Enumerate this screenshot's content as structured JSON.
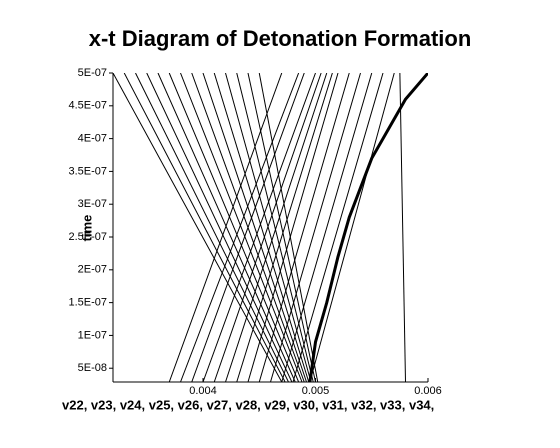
{
  "chart_data": {
    "type": "line",
    "title": "x-t Diagram of Detonation Formation",
    "x_label": "v22, v23, v24, v25, v26, v27, v28, v29, v30, v31, v32, v33, v34,",
    "y_label": "time",
    "color": "#000000",
    "xlim": [
      0.0032,
      0.006
    ],
    "xticks": [
      0.004,
      0.005,
      0.006
    ],
    "ylim": [
      2.9e-08,
      5e-07
    ],
    "yticks": [
      {
        "value": 5e-08,
        "label": "5E-08"
      },
      {
        "value": 1e-07,
        "label": "1E-07"
      },
      {
        "value": 1.5e-07,
        "label": "1.5E-07"
      },
      {
        "value": 2e-07,
        "label": "2E-07"
      },
      {
        "value": 2.5e-07,
        "label": "2.5E-07"
      },
      {
        "value": 3e-07,
        "label": "3E-07"
      },
      {
        "value": 3.5e-07,
        "label": "3.5E-07"
      },
      {
        "value": 4e-07,
        "label": "4E-07"
      },
      {
        "value": 4.5e-07,
        "label": "4.5E-07"
      },
      {
        "value": 5e-07,
        "label": "5E-07"
      }
    ],
    "series": [
      {
        "x": [
          0.0032,
          0.0047
        ],
        "values": [
          5e-07,
          2.9e-08
        ]
      },
      {
        "x": [
          0.0033,
          0.00473
        ],
        "values": [
          5e-07,
          2.9e-08
        ]
      },
      {
        "x": [
          0.0034,
          0.00476
        ],
        "values": [
          5e-07,
          2.9e-08
        ]
      },
      {
        "x": [
          0.0035,
          0.00479
        ],
        "values": [
          5e-07,
          2.9e-08
        ]
      },
      {
        "x": [
          0.0036,
          0.00482
        ],
        "values": [
          5e-07,
          2.9e-08
        ]
      },
      {
        "x": [
          0.0037,
          0.00485
        ],
        "values": [
          5e-07,
          2.9e-08
        ]
      },
      {
        "x": [
          0.0038,
          0.00488
        ],
        "values": [
          5e-07,
          2.9e-08
        ]
      },
      {
        "x": [
          0.0039,
          0.0049
        ],
        "values": [
          5e-07,
          2.9e-08
        ]
      },
      {
        "x": [
          0.004,
          0.00492
        ],
        "values": [
          5e-07,
          2.9e-08
        ]
      },
      {
        "x": [
          0.0041,
          0.00494
        ],
        "values": [
          5e-07,
          2.9e-08
        ]
      },
      {
        "x": [
          0.0042,
          0.00496
        ],
        "values": [
          5e-07,
          2.9e-08
        ]
      },
      {
        "x": [
          0.0043,
          0.00498
        ],
        "values": [
          5e-07,
          2.9e-08
        ]
      },
      {
        "x": [
          0.0044,
          0.005
        ],
        "values": [
          5e-07,
          2.9e-08
        ]
      },
      {
        "x": [
          0.0045,
          0.00502
        ],
        "values": [
          5e-07,
          2.9e-08
        ]
      },
      {
        "x": [
          0.0037,
          0.0047
        ],
        "values": [
          2.9e-08,
          5e-07
        ]
      },
      {
        "x": [
          0.0038,
          0.00485
        ],
        "values": [
          2.9e-08,
          5e-07
        ]
      },
      {
        "x": [
          0.0039,
          0.0049
        ],
        "values": [
          2.9e-08,
          5e-07
        ]
      },
      {
        "x": [
          0.004,
          0.005
        ],
        "values": [
          2.9e-08,
          5e-07
        ]
      },
      {
        "x": [
          0.0041,
          0.00505
        ],
        "values": [
          2.9e-08,
          5e-07
        ]
      },
      {
        "x": [
          0.0042,
          0.0051
        ],
        "values": [
          2.9e-08,
          5e-07
        ]
      },
      {
        "x": [
          0.0043,
          0.00515
        ],
        "values": [
          2.9e-08,
          5e-07
        ]
      },
      {
        "x": [
          0.0044,
          0.0052
        ],
        "values": [
          2.9e-08,
          5e-07
        ]
      },
      {
        "x": [
          0.0045,
          0.0053
        ],
        "values": [
          2.9e-08,
          5e-07
        ]
      },
      {
        "x": [
          0.0046,
          0.0054
        ],
        "values": [
          2.9e-08,
          5e-07
        ]
      },
      {
        "x": [
          0.0047,
          0.0055
        ],
        "values": [
          2.9e-08,
          5e-07
        ]
      },
      {
        "x": [
          0.0048,
          0.0056
        ],
        "values": [
          2.9e-08,
          5e-07
        ]
      },
      {
        "x": [
          0.00495,
          0.0057
        ],
        "values": [
          2.9e-08,
          5e-07
        ]
      },
      {
        "x": [
          0.0058,
          0.00575
        ],
        "values": [
          2.9e-08,
          5e-07
        ]
      },
      {
        "x": [
          0.00495,
          0.005,
          0.0051,
          0.0052,
          0.0053,
          0.0055,
          0.0058,
          0.006
        ],
        "values": [
          2.9e-08,
          9e-08,
          1.5e-07,
          2.2e-07,
          2.8e-07,
          3.7e-07,
          4.6e-07,
          5e-07
        ],
        "line_width": 3
      }
    ]
  }
}
